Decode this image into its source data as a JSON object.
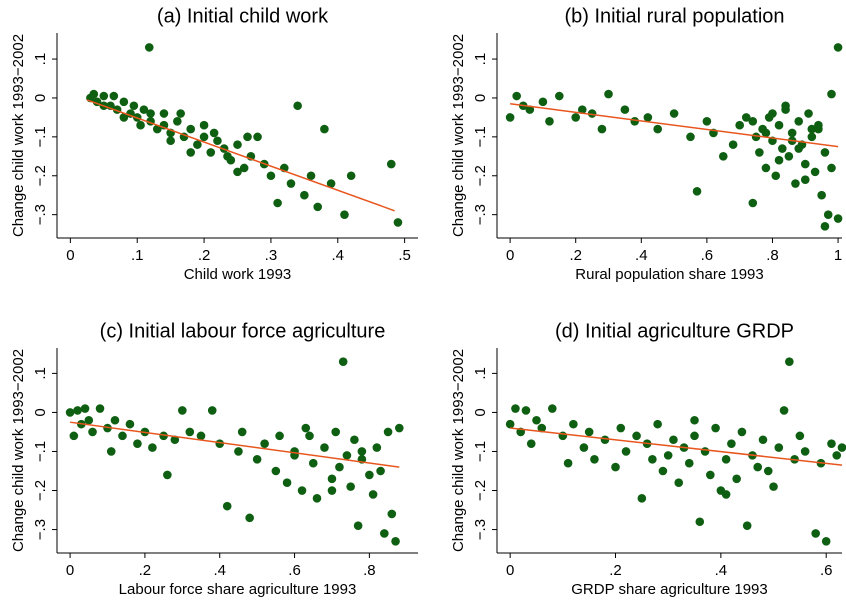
{
  "chart_data": [
    {
      "type": "scatter",
      "title": "(a) Initial child work",
      "xlabel": "Child work 1993",
      "ylabel": "Change child work 1993−2002",
      "color": "#0f5f12",
      "x": [
        0.03,
        0.04,
        0.05,
        0.06,
        0.07,
        0.08,
        0.09,
        0.1,
        0.11,
        0.12,
        0.118,
        0.13,
        0.14,
        0.15,
        0.16,
        0.17,
        0.18,
        0.19,
        0.2,
        0.21,
        0.22,
        0.23,
        0.24,
        0.25,
        0.26,
        0.27,
        0.28,
        0.3,
        0.31,
        0.32,
        0.33,
        0.34,
        0.35,
        0.36,
        0.37,
        0.38,
        0.39,
        0.41,
        0.42,
        0.48,
        0.49,
        0.05,
        0.08,
        0.12,
        0.15,
        0.2,
        0.25,
        0.29,
        0.14,
        0.18,
        0.035,
        0.065,
        0.095,
        0.105,
        0.165,
        0.215,
        0.235,
        0.265
      ],
      "y": [
        0,
        -0.01,
        0.005,
        -0.02,
        -0.03,
        -0.01,
        -0.04,
        -0.05,
        -0.03,
        -0.06,
        0.13,
        -0.08,
        -0.07,
        -0.09,
        -0.06,
        -0.1,
        -0.08,
        -0.12,
        -0.1,
        -0.14,
        -0.11,
        -0.13,
        -0.16,
        -0.12,
        -0.18,
        -0.15,
        -0.1,
        -0.2,
        -0.27,
        -0.18,
        -0.22,
        -0.02,
        -0.25,
        -0.2,
        -0.28,
        -0.08,
        -0.22,
        -0.3,
        -0.2,
        -0.17,
        -0.32,
        -0.02,
        -0.05,
        -0.04,
        -0.11,
        -0.07,
        -0.19,
        -0.17,
        -0.04,
        -0.14,
        0.01,
        0.005,
        -0.02,
        -0.07,
        -0.04,
        -0.09,
        -0.15,
        -0.1
      ],
      "fit": {
        "x": [
          0.025,
          0.485
        ],
        "y": [
          -0.005,
          -0.29
        ],
        "color": "#e8561e"
      },
      "xlim": [
        -0.02,
        0.52
      ],
      "ylim": [
        -0.36,
        0.167
      ],
      "xticks": [
        0,
        {
          "value": 0.1,
          "label": ".1"
        },
        {
          "value": 0.2,
          "label": ".2"
        },
        {
          "value": 0.3,
          "label": ".3"
        },
        {
          "value": 0.4,
          "label": ".4"
        },
        {
          "value": 0.5,
          "label": ".5"
        }
      ],
      "yticks": [
        {
          "value": -0.3,
          "label": "−.3"
        },
        {
          "value": -0.2,
          "label": "−.2"
        },
        {
          "value": -0.1,
          "label": "−.1"
        },
        0,
        {
          "value": 0.1,
          "label": ".1"
        }
      ]
    },
    {
      "type": "scatter",
      "title": "(b) Initial rural population",
      "xlabel": "Rural population share 1993",
      "ylabel": "Change child work 1993−2002",
      "color": "#0f5f12",
      "x": [
        0,
        0.02,
        0.04,
        0.06,
        0.1,
        0.12,
        0.15,
        0.2,
        0.22,
        0.25,
        0.28,
        0.3,
        0.35,
        0.38,
        0.42,
        0.45,
        0.5,
        0.55,
        0.57,
        0.6,
        0.62,
        0.65,
        0.68,
        0.7,
        0.72,
        0.74,
        0.75,
        0.76,
        0.77,
        0.78,
        0.79,
        0.8,
        0.81,
        0.82,
        0.83,
        0.84,
        0.85,
        0.86,
        0.87,
        0.88,
        0.89,
        0.9,
        0.91,
        0.92,
        0.93,
        0.94,
        0.95,
        0.96,
        0.97,
        0.98,
        1,
        1,
        0.74,
        0.78,
        0.82,
        0.86,
        0.9,
        0.94,
        0.98,
        0.8,
        0.84,
        0.88,
        0.92,
        0.96
      ],
      "y": [
        -0.05,
        0.005,
        -0.02,
        -0.03,
        -0.01,
        -0.06,
        0.005,
        -0.05,
        -0.03,
        -0.04,
        -0.08,
        0.01,
        -0.03,
        -0.06,
        -0.05,
        -0.08,
        -0.04,
        -0.1,
        -0.24,
        -0.06,
        -0.09,
        -0.15,
        -0.12,
        -0.07,
        -0.05,
        -0.27,
        -0.1,
        -0.14,
        -0.08,
        -0.18,
        -0.05,
        -0.11,
        -0.2,
        -0.07,
        -0.13,
        -0.03,
        -0.15,
        -0.09,
        -0.22,
        -0.06,
        -0.12,
        -0.17,
        -0.04,
        -0.1,
        -0.19,
        -0.08,
        -0.25,
        -0.14,
        -0.3,
        0.01,
        0.13,
        -0.31,
        -0.06,
        -0.09,
        -0.16,
        -0.11,
        -0.21,
        -0.07,
        -0.18,
        -0.04,
        -0.02,
        -0.13,
        -0.08,
        -0.33
      ],
      "fit": {
        "x": [
          0,
          1
        ],
        "y": [
          -0.015,
          -0.125
        ],
        "color": "#e8561e"
      },
      "xlim": [
        -0.04,
        1.012
      ],
      "ylim": [
        -0.36,
        0.167
      ],
      "xticks": [
        0,
        {
          "value": 0.2,
          "label": ".2"
        },
        {
          "value": 0.4,
          "label": ".4"
        },
        {
          "value": 0.6,
          "label": ".6"
        },
        {
          "value": 0.8,
          "label": ".8"
        },
        1
      ],
      "yticks": [
        {
          "value": -0.3,
          "label": "−.3"
        },
        {
          "value": -0.2,
          "label": "−.2"
        },
        {
          "value": -0.1,
          "label": "−.1"
        },
        0,
        {
          "value": 0.1,
          "label": ".1"
        }
      ]
    },
    {
      "type": "scatter",
      "title": "(c) Initial labour force agriculture",
      "xlabel": "Labour force share agriculture 1993",
      "ylabel": "Change child work 1993−2002",
      "color": "#0f5f12",
      "x": [
        0,
        0.01,
        0.02,
        0.03,
        0.04,
        0.05,
        0.06,
        0.08,
        0.1,
        0.11,
        0.12,
        0.14,
        0.16,
        0.18,
        0.2,
        0.22,
        0.25,
        0.26,
        0.28,
        0.3,
        0.32,
        0.35,
        0.38,
        0.4,
        0.42,
        0.45,
        0.46,
        0.48,
        0.5,
        0.52,
        0.55,
        0.56,
        0.58,
        0.6,
        0.62,
        0.63,
        0.65,
        0.66,
        0.68,
        0.7,
        0.71,
        0.72,
        0.73,
        0.74,
        0.75,
        0.76,
        0.77,
        0.78,
        0.8,
        0.81,
        0.82,
        0.84,
        0.85,
        0.86,
        0.87,
        0.88,
        0.6,
        0.64,
        0.7,
        0.78,
        0.83
      ],
      "y": [
        0,
        -0.06,
        0.005,
        -0.03,
        0.01,
        -0.02,
        -0.05,
        0.01,
        -0.04,
        -0.1,
        -0.02,
        -0.06,
        -0.03,
        -0.08,
        -0.05,
        -0.09,
        -0.06,
        -0.16,
        -0.07,
        0.005,
        -0.05,
        -0.06,
        0.005,
        -0.08,
        -0.24,
        -0.1,
        -0.05,
        -0.27,
        -0.12,
        -0.08,
        -0.15,
        -0.06,
        -0.18,
        -0.1,
        -0.2,
        -0.04,
        -0.13,
        -0.22,
        -0.09,
        -0.17,
        -0.05,
        -0.14,
        0.13,
        -0.11,
        -0.19,
        -0.07,
        -0.29,
        -0.12,
        -0.16,
        -0.21,
        -0.09,
        -0.31,
        -0.05,
        -0.26,
        -0.33,
        -0.04,
        -0.11,
        -0.06,
        -0.2,
        -0.1,
        -0.15
      ],
      "fit": {
        "x": [
          0,
          0.88
        ],
        "y": [
          -0.025,
          -0.14
        ],
        "color": "#e8561e"
      },
      "xlim": [
        -0.035,
        0.93
      ],
      "ylim": [
        -0.36,
        0.165
      ],
      "xticks": [
        0,
        {
          "value": 0.2,
          "label": ".2"
        },
        {
          "value": 0.4,
          "label": ".4"
        },
        {
          "value": 0.6,
          "label": ".6"
        },
        {
          "value": 0.8,
          "label": ".8"
        }
      ],
      "yticks": [
        {
          "value": -0.3,
          "label": "−.3"
        },
        {
          "value": -0.2,
          "label": "−.2"
        },
        {
          "value": -0.1,
          "label": "−.1"
        },
        0,
        {
          "value": 0.1,
          "label": ".1"
        }
      ]
    },
    {
      "type": "scatter",
      "title": "(d) Initial agriculture GRDP",
      "xlabel": "GRDP share agriculture 1993",
      "ylabel": "Change child work 1993−2002",
      "color": "#0f5f12",
      "x": [
        0,
        0.01,
        0.02,
        0.03,
        0.04,
        0.05,
        0.06,
        0.08,
        0.1,
        0.11,
        0.12,
        0.14,
        0.15,
        0.16,
        0.18,
        0.2,
        0.21,
        0.22,
        0.24,
        0.25,
        0.26,
        0.28,
        0.29,
        0.3,
        0.31,
        0.32,
        0.33,
        0.34,
        0.35,
        0.36,
        0.37,
        0.38,
        0.39,
        0.4,
        0.41,
        0.42,
        0.43,
        0.44,
        0.45,
        0.46,
        0.47,
        0.48,
        0.5,
        0.51,
        0.52,
        0.53,
        0.54,
        0.55,
        0.56,
        0.58,
        0.59,
        0.6,
        0.61,
        0.62,
        0.63,
        0.27,
        0.35,
        0.41,
        0.49
      ],
      "y": [
        -0.03,
        0.01,
        -0.05,
        0.005,
        -0.08,
        -0.02,
        -0.04,
        0.01,
        -0.06,
        -0.13,
        -0.03,
        -0.09,
        -0.05,
        -0.12,
        -0.07,
        -0.14,
        -0.04,
        -0.1,
        -0.06,
        -0.22,
        -0.08,
        -0.03,
        -0.15,
        -0.11,
        -0.07,
        -0.18,
        -0.09,
        -0.13,
        -0.06,
        -0.28,
        -0.1,
        -0.16,
        -0.04,
        -0.2,
        -0.12,
        -0.08,
        -0.17,
        -0.05,
        -0.29,
        -0.11,
        -0.14,
        -0.07,
        -0.19,
        -0.09,
        0.005,
        0.13,
        -0.12,
        -0.06,
        -0.1,
        -0.31,
        -0.13,
        -0.33,
        -0.08,
        -0.11,
        -0.09,
        -0.12,
        -0.02,
        -0.21,
        -0.15
      ],
      "fit": {
        "x": [
          0,
          0.63
        ],
        "y": [
          -0.04,
          -0.135
        ],
        "color": "#e8561e"
      },
      "xlim": [
        -0.025,
        0.63
      ],
      "ylim": [
        -0.36,
        0.165
      ],
      "xticks": [
        0,
        {
          "value": 0.2,
          "label": ".2"
        },
        {
          "value": 0.4,
          "label": ".4"
        },
        {
          "value": 0.6,
          "label": ".6"
        }
      ],
      "yticks": [
        {
          "value": -0.3,
          "label": "−.3"
        },
        {
          "value": -0.2,
          "label": "−.2"
        },
        {
          "value": -0.1,
          "label": "−.1"
        },
        0,
        {
          "value": 0.1,
          "label": ".1"
        }
      ]
    }
  ]
}
